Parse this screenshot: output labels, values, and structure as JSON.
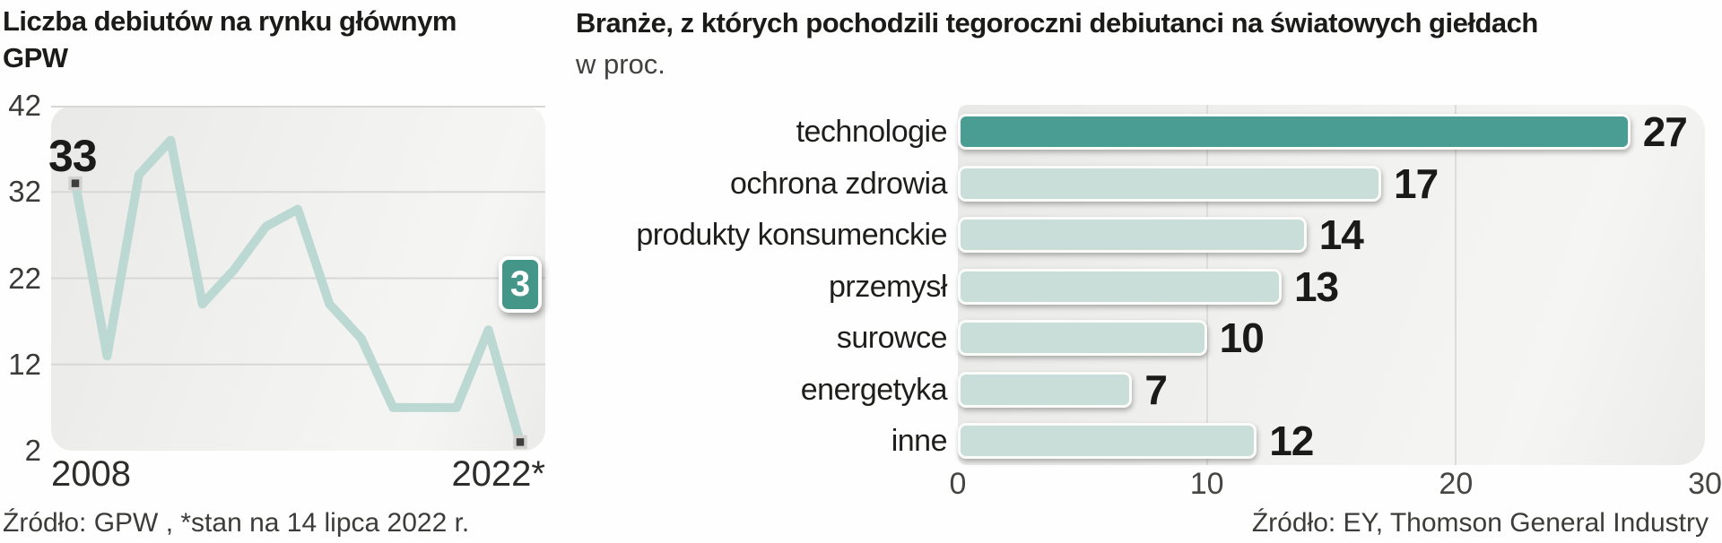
{
  "left_chart": {
    "title_lines": [
      "Liczba debiutów na rynku głównym",
      "GPW"
    ],
    "value_label_first": "33",
    "badge_label": "3",
    "x_first_label": "2008",
    "x_last_label": "2022*",
    "source": "Źródło: GPW , *stan na 14 lipca 2022 r.",
    "colors": {
      "line": "#BCD8D2",
      "marker": "#3E3E3C",
      "marker_border": "#D2D2D0",
      "badge": "#449689",
      "grid": "#D7D7D5"
    }
  },
  "right_chart": {
    "title": "Branże, z których pochodzili tegoroczni debiutanci na światowych giełdach",
    "subtitle": "w proc.",
    "source": "Źródło: EY, Thomson General Industry",
    "colors": {
      "bar": "#C9DED9",
      "bar_highlight": "#4A9D93",
      "grid": "#DCDCDA"
    }
  },
  "chart_data": [
    {
      "type": "line",
      "title": "Liczba debiutów na rynku głównym GPW",
      "x": [
        2008,
        2009,
        2010,
        2011,
        2012,
        2013,
        2014,
        2015,
        2016,
        2017,
        2018,
        2019,
        2020,
        2021,
        2022
      ],
      "values": [
        33,
        13,
        34,
        38,
        19,
        23,
        28,
        30,
        19,
        15,
        7,
        7,
        7,
        16,
        3
      ],
      "y_ticks": [
        42,
        32,
        22,
        12,
        2
      ],
      "ylim": [
        2,
        42
      ],
      "grid": true,
      "x_axis_labels_shown": [
        "2008",
        "2022*"
      ],
      "annotations": {
        "first_point_label": "33",
        "last_point_badge": "3"
      }
    },
    {
      "type": "bar",
      "orientation": "horizontal",
      "categories": [
        "technologie",
        "ochrona zdrowia",
        "produkty konsumenckie",
        "przemysł",
        "surowce",
        "energetyka",
        "inne"
      ],
      "values": [
        27,
        17,
        14,
        13,
        10,
        7,
        12
      ],
      "x_ticks": [
        0,
        10,
        20,
        30
      ],
      "xlim": [
        0,
        30
      ],
      "highlight_index": 0,
      "unit": "proc.",
      "grid": true
    }
  ]
}
